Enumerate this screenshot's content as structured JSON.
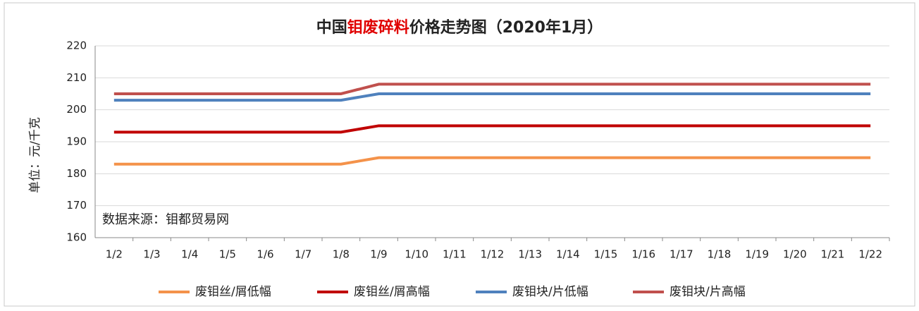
{
  "chart_data": {
    "type": "line",
    "title": [
      "中国",
      "钼废碎料",
      "价格走势图（2020年1月）"
    ],
    "title_highlight_color": "#e00000",
    "y_label": "单位：元/千克",
    "annotation": "数据来源：钼都贸易网",
    "categories": [
      "1/2",
      "1/3",
      "1/4",
      "1/5",
      "1/6",
      "1/7",
      "1/8",
      "1/9",
      "1/10",
      "1/11",
      "1/12",
      "1/13",
      "1/14",
      "1/15",
      "1/16",
      "1/17",
      "1/18",
      "1/19",
      "1/20",
      "1/21",
      "1/22"
    ],
    "series": [
      {
        "name": "废钼丝/屑低幅",
        "color": "#f4924a",
        "values": [
          183,
          183,
          183,
          183,
          183,
          183,
          183,
          185,
          185,
          185,
          185,
          185,
          185,
          185,
          185,
          185,
          185,
          185,
          185,
          185,
          185
        ]
      },
      {
        "name": "废钼丝/屑高幅",
        "color": "#c00000",
        "values": [
          193,
          193,
          193,
          193,
          193,
          193,
          193,
          195,
          195,
          195,
          195,
          195,
          195,
          195,
          195,
          195,
          195,
          195,
          195,
          195,
          195
        ]
      },
      {
        "name": "废钼块/片低幅",
        "color": "#4f81bd",
        "values": [
          203,
          203,
          203,
          203,
          203,
          203,
          203,
          205,
          205,
          205,
          205,
          205,
          205,
          205,
          205,
          205,
          205,
          205,
          205,
          205,
          205
        ]
      },
      {
        "name": "废钼块/片高幅",
        "color": "#c0504d",
        "values": [
          205,
          205,
          205,
          205,
          205,
          205,
          205,
          208,
          208,
          208,
          208,
          208,
          208,
          208,
          208,
          208,
          208,
          208,
          208,
          208,
          208
        ]
      }
    ],
    "ylim": [
      160,
      220
    ],
    "yticks": [
      160,
      170,
      180,
      190,
      200,
      210,
      220
    ],
    "grid": true,
    "legend": "bottom"
  }
}
